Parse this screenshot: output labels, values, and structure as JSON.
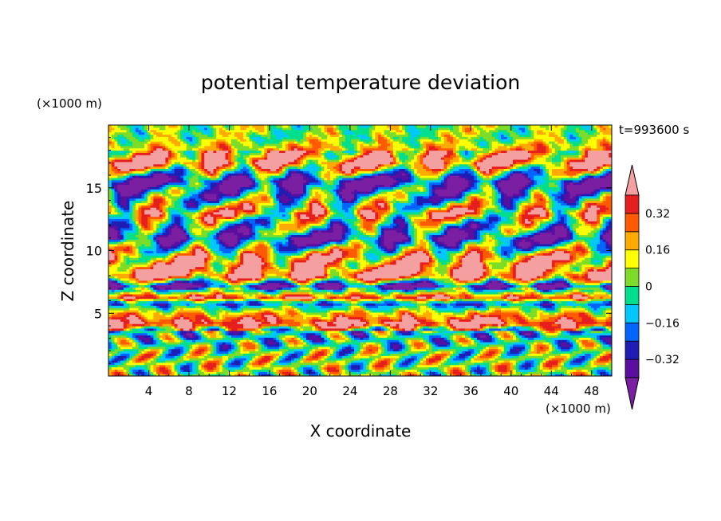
{
  "chart_data": {
    "type": "heatmap",
    "title": "potential temperature deviation",
    "xlabel": "X coordinate",
    "ylabel": "Z coordinate",
    "x_unit": "(×1000 m)",
    "y_unit": "(×1000 m)",
    "time_label": "t=993600 s",
    "xlim": [
      0,
      50
    ],
    "ylim": [
      0,
      20
    ],
    "x_ticks": [
      4,
      8,
      12,
      16,
      20,
      24,
      28,
      32,
      36,
      40,
      44,
      48
    ],
    "y_ticks": [
      5,
      10,
      15
    ],
    "colorbar": {
      "levels": [
        -0.4,
        -0.32,
        -0.24,
        -0.16,
        -0.08,
        0,
        0.08,
        0.16,
        0.24,
        0.32,
        0.4
      ],
      "tick_labels": [
        "0.32",
        "0.16",
        "0",
        "−0.16",
        "−0.32"
      ],
      "tick_values": [
        0.32,
        0.16,
        0,
        -0.16,
        -0.32
      ],
      "colors": [
        "#7b1fa2",
        "#5a0fa0",
        "#1e1eb4",
        "#0064ff",
        "#00c8ff",
        "#00e08c",
        "#7ddc28",
        "#ffff00",
        "#ffaa00",
        "#ff5a00",
        "#e61e1e",
        "#f5a0a0"
      ]
    },
    "bands": [
      {
        "z": 19.0,
        "value": 0.04
      },
      {
        "z": 17.0,
        "value": 0.36
      },
      {
        "z": 15.5,
        "value": -0.36
      },
      {
        "z": 13.0,
        "value": 0.2
      },
      {
        "z": 11.0,
        "value": -0.3
      },
      {
        "z": 9.5,
        "value": 0.25
      },
      {
        "z": 8.0,
        "value": 0.42
      },
      {
        "z": 7.2,
        "value": -0.35
      },
      {
        "z": 6.3,
        "value": 0.36
      },
      {
        "z": 5.8,
        "value": -0.2
      },
      {
        "z": 5.0,
        "value": 0.18
      },
      {
        "z": 4.2,
        "value": 0.42
      },
      {
        "z": 3.5,
        "value": -0.1
      },
      {
        "z": 1.5,
        "value": 0.05
      }
    ]
  }
}
